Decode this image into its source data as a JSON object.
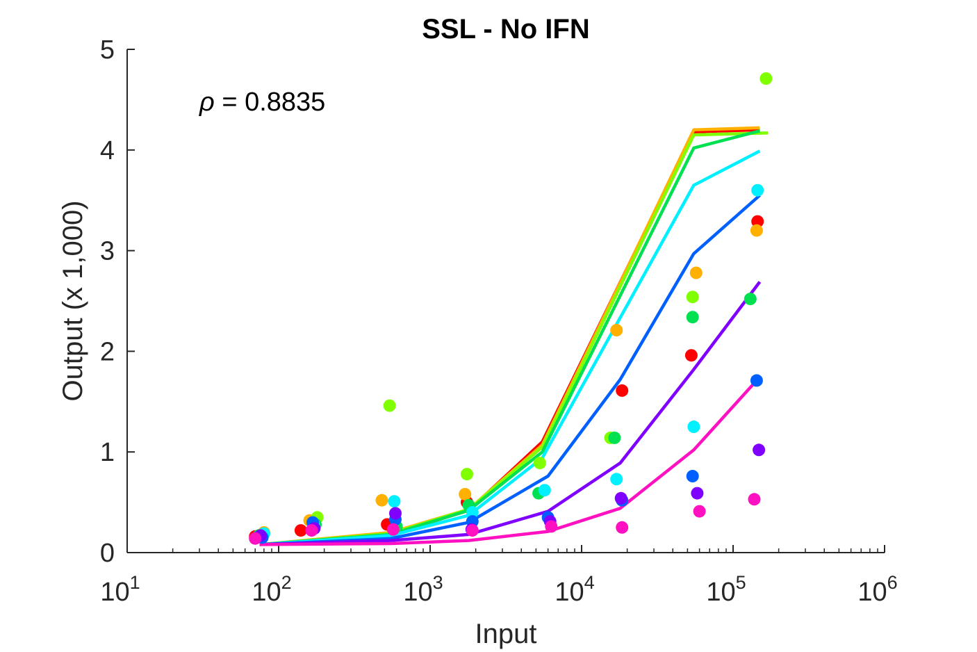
{
  "chart_data": {
    "type": "scatter",
    "title": "SSL - No IFN",
    "xlabel": "Input",
    "ylabel": "Output (x 1,000)",
    "xscale": "log",
    "xlim": [
      10,
      1000000
    ],
    "ylim": [
      0,
      5
    ],
    "yticks": [
      0,
      1,
      2,
      3,
      4,
      5
    ],
    "yticklabels": [
      "0",
      "1",
      "2",
      "3",
      "4",
      "5"
    ],
    "xticks": [
      {
        "value": 10,
        "base": "10",
        "exp": "1"
      },
      {
        "value": 100,
        "base": "10",
        "exp": "2"
      },
      {
        "value": 1000,
        "base": "10",
        "exp": "3"
      },
      {
        "value": 10000,
        "base": "10",
        "exp": "4"
      },
      {
        "value": 100000,
        "base": "10",
        "exp": "5"
      },
      {
        "value": 1000000,
        "base": "10",
        "exp": "6"
      }
    ],
    "annotation": {
      "symbol": "ρ",
      "text": " = 0.8835"
    },
    "grid": false,
    "legend": "none",
    "series": [
      {
        "color": "#ff0000",
        "line": [
          [
            75,
            0.08
          ],
          [
            550,
            0.18
          ],
          [
            1800,
            0.42
          ],
          [
            5500,
            1.1
          ],
          [
            55000,
            4.18
          ],
          [
            150000,
            4.2
          ]
        ],
        "points": [
          [
            70,
            0.16
          ],
          [
            140,
            0.22
          ],
          [
            520,
            0.28
          ],
          [
            1750,
            0.5
          ],
          [
            18500,
            1.61
          ],
          [
            53000,
            1.96
          ],
          [
            145000,
            3.29
          ]
        ]
      },
      {
        "color": "#ffb000",
        "line": [
          [
            75,
            0.08
          ],
          [
            550,
            0.2
          ],
          [
            1800,
            0.43
          ],
          [
            5500,
            1.07
          ],
          [
            55000,
            4.2
          ],
          [
            150000,
            4.22
          ]
        ],
        "points": [
          [
            80,
            0.2
          ],
          [
            160,
            0.32
          ],
          [
            480,
            0.52
          ],
          [
            1700,
            0.58
          ],
          [
            17000,
            2.21
          ],
          [
            57000,
            2.78
          ],
          [
            143000,
            3.2
          ]
        ]
      },
      {
        "color": "#80ff00",
        "line": [
          [
            75,
            0.08
          ],
          [
            550,
            0.19
          ],
          [
            1800,
            0.43
          ],
          [
            5500,
            1.05
          ],
          [
            55000,
            4.15
          ],
          [
            170000,
            4.17
          ]
        ],
        "points": [
          [
            78,
            0.18
          ],
          [
            180,
            0.35
          ],
          [
            540,
            1.46
          ],
          [
            1750,
            0.78
          ],
          [
            5300,
            0.89
          ],
          [
            15500,
            1.14
          ],
          [
            54000,
            2.54
          ],
          [
            165000,
            4.71
          ]
        ]
      },
      {
        "color": "#00e050",
        "line": [
          [
            75,
            0.08
          ],
          [
            550,
            0.18
          ],
          [
            1800,
            0.42
          ],
          [
            5500,
            1.0
          ],
          [
            55000,
            4.02
          ],
          [
            150000,
            4.19
          ]
        ],
        "points": [
          [
            74,
            0.17
          ],
          [
            175,
            0.28
          ],
          [
            600,
            0.26
          ],
          [
            1800,
            0.47
          ],
          [
            5200,
            0.59
          ],
          [
            16500,
            1.14
          ],
          [
            54000,
            2.34
          ],
          [
            130000,
            2.52
          ]
        ]
      },
      {
        "color": "#00f0ff",
        "line": [
          [
            75,
            0.08
          ],
          [
            550,
            0.17
          ],
          [
            1800,
            0.37
          ],
          [
            5500,
            0.94
          ],
          [
            55000,
            3.65
          ],
          [
            150000,
            3.99
          ]
        ],
        "points": [
          [
            80,
            0.19
          ],
          [
            170,
            0.28
          ],
          [
            580,
            0.51
          ],
          [
            1900,
            0.4
          ],
          [
            5700,
            0.62
          ],
          [
            17000,
            0.73
          ],
          [
            55000,
            1.25
          ],
          [
            145000,
            3.6
          ]
        ]
      },
      {
        "color": "#0060ff",
        "line": [
          [
            75,
            0.08
          ],
          [
            550,
            0.14
          ],
          [
            1800,
            0.3
          ],
          [
            6000,
            0.76
          ],
          [
            18000,
            1.72
          ],
          [
            55000,
            2.97
          ],
          [
            150000,
            3.55
          ]
        ],
        "points": [
          [
            78,
            0.15
          ],
          [
            168,
            0.3
          ],
          [
            590,
            0.33
          ],
          [
            1900,
            0.31
          ],
          [
            6000,
            0.35
          ],
          [
            18500,
            0.52
          ],
          [
            54000,
            0.76
          ],
          [
            143000,
            1.71
          ]
        ]
      },
      {
        "color": "#8000ff",
        "line": [
          [
            75,
            0.08
          ],
          [
            550,
            0.12
          ],
          [
            1800,
            0.18
          ],
          [
            6000,
            0.41
          ],
          [
            18000,
            0.89
          ],
          [
            55000,
            1.82
          ],
          [
            150000,
            2.69
          ]
        ],
        "points": [
          [
            76,
            0.17
          ],
          [
            172,
            0.24
          ],
          [
            590,
            0.39
          ],
          [
            1880,
            0.23
          ],
          [
            6200,
            0.31
          ],
          [
            18200,
            0.54
          ],
          [
            58000,
            0.59
          ],
          [
            148000,
            1.02
          ]
        ]
      },
      {
        "color": "#ff10c0",
        "line": [
          [
            75,
            0.08
          ],
          [
            550,
            0.09
          ],
          [
            1800,
            0.12
          ],
          [
            6000,
            0.21
          ],
          [
            18000,
            0.44
          ],
          [
            55000,
            1.02
          ],
          [
            145000,
            1.72
          ]
        ],
        "points": [
          [
            70,
            0.14
          ],
          [
            165,
            0.22
          ],
          [
            570,
            0.23
          ],
          [
            1900,
            0.22
          ],
          [
            6300,
            0.26
          ],
          [
            18500,
            0.25
          ],
          [
            60000,
            0.41
          ],
          [
            138000,
            0.53
          ]
        ]
      }
    ]
  }
}
